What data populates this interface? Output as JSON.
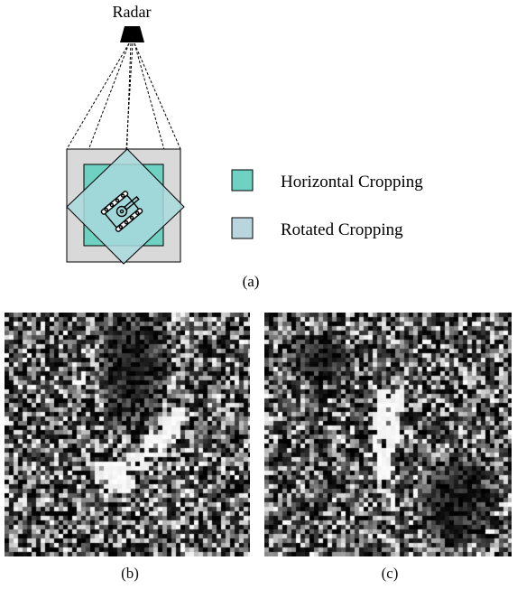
{
  "diagram": {
    "radar_label": "Radar",
    "legend": [
      {
        "label": "Horizontal Cropping",
        "color": "#6ed1c1"
      },
      {
        "label": "Rotated Cropping",
        "color": "#b9d6df"
      }
    ],
    "panel_label": "(a)",
    "colors": {
      "outer_square": "#d9d9d9",
      "horizontal_crop": "#6ed1c1",
      "rotated_crop": "#a9d9dd",
      "stroke": "#000000"
    },
    "icons": [
      "radar-icon",
      "tank-icon"
    ]
  },
  "images": [
    {
      "caption": "(b)",
      "name": "sar-image-b"
    },
    {
      "caption": "(c)",
      "name": "sar-image-c"
    }
  ]
}
